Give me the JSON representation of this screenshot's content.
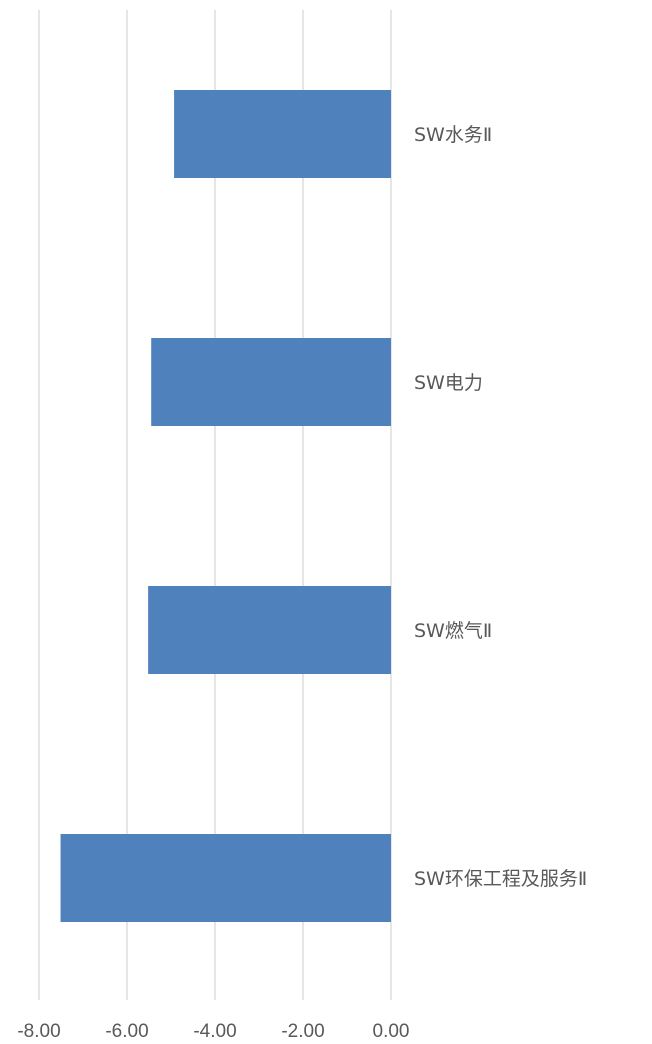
{
  "chart_data": {
    "type": "bar",
    "orientation": "horizontal",
    "categories": [
      "SW水务Ⅱ",
      "SW电力",
      "SW燃气Ⅱ",
      "SW环保工程及服务Ⅱ"
    ],
    "values": [
      -4.93,
      -5.45,
      -5.52,
      -7.51
    ],
    "xlim": [
      -8,
      0
    ],
    "xticks": [
      "-8.00",
      "-6.00",
      "-4.00",
      "-2.00",
      "0.00"
    ],
    "grid": true,
    "colors": {
      "bar": "#4f81bd",
      "grid": "#d9d9d9",
      "text": "#595959"
    }
  }
}
